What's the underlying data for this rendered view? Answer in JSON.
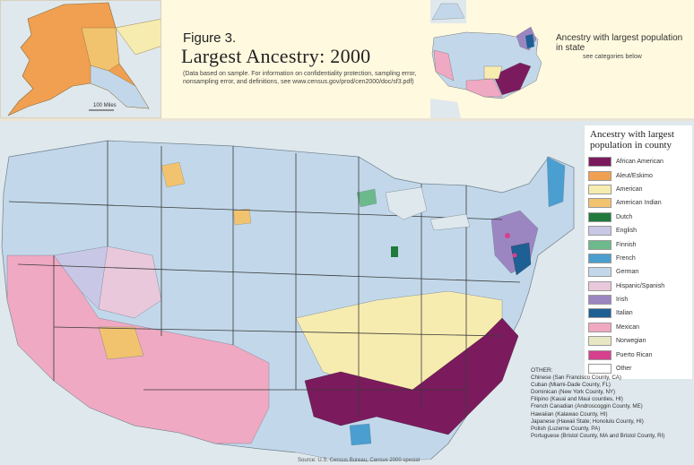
{
  "header": {
    "figure_label": "Figure 3.",
    "title": "Largest Ancestry: 2000",
    "note": "(Data based on sample. For information on confidentiality protection, sampling error, nonsampling error, and definitions, see www.census.gov/prod/cen2000/doc/sf3.pdf)"
  },
  "inset_map": {
    "title": "Ancestry with largest population in state",
    "subtitle": "see categories below"
  },
  "alaska_inset": {
    "scale_label": "100 Miles"
  },
  "legend": {
    "title": "Ancestry with largest population in county",
    "items": [
      {
        "label": "African American",
        "color": "#7b1b5e"
      },
      {
        "label": "Aleut/Eskimo",
        "color": "#f0a050"
      },
      {
        "label": "American",
        "color": "#f7ecb0"
      },
      {
        "label": "American Indian",
        "color": "#f2c36e"
      },
      {
        "label": "Dutch",
        "color": "#1f7a3b"
      },
      {
        "label": "English",
        "color": "#c9c7e6"
      },
      {
        "label": "Finnish",
        "color": "#6cb98c"
      },
      {
        "label": "French",
        "color": "#4a9ed0"
      },
      {
        "label": "German",
        "color": "#c2d8ea"
      },
      {
        "label": "Hispanic/Spanish",
        "color": "#e9c8dc"
      },
      {
        "label": "Irish",
        "color": "#9b86c2"
      },
      {
        "label": "Italian",
        "color": "#1e5f94"
      },
      {
        "label": "Mexican",
        "color": "#f0a9c2"
      },
      {
        "label": "Norwegian",
        "color": "#e8e7c4"
      },
      {
        "label": "Puerto Rican",
        "color": "#d7408e"
      },
      {
        "label": "Other",
        "color": "#ffffff"
      }
    ]
  },
  "other_note": {
    "heading": "OTHER:",
    "lines": [
      "Chinese (San Francisco County, CA)",
      "Cuban (Miami-Dade County, FL)",
      "Dominican (New York County, NY)",
      "Filipino (Kauai and Maui counties, HI)",
      "French Canadian (Androscoggin County, ME)",
      "Hawaiian (Kalawao County, HI)",
      "Japanese (Hawaii State; Honolulu County, HI)",
      "Polish (Luzerne County, PA)",
      "Portuguese (Bristol County, MA and Bristol County, RI)"
    ]
  },
  "source": "Source: U.S. Census Bureau, Census 2000 special"
}
